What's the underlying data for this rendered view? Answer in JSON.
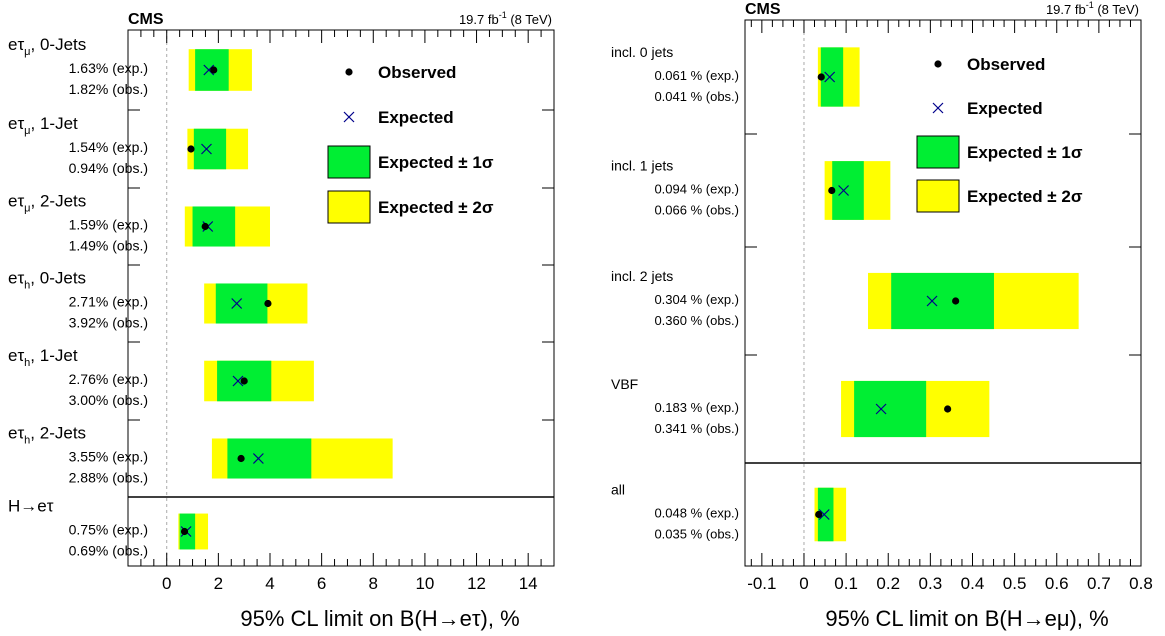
{
  "chart_data": [
    {
      "type": "horizontal-interval",
      "cms_label": "CMS",
      "lumi": "19.7 fb",
      "lumi_sup": "-1",
      "energy": "(8 TeV)",
      "xlabel": "95% CL limit on B(H→eτ), %",
      "xlim": [
        -1.5,
        15.0
      ],
      "xticks": [
        0,
        2,
        4,
        6,
        8,
        10,
        12,
        14
      ],
      "grid": false,
      "legend_position": "top-right",
      "legend": [
        "Observed",
        "Expected",
        "Expected ± 1σ",
        "Expected ± 2σ"
      ],
      "colors": {
        "one_sigma": "#00ee33",
        "two_sigma": "#ffff00",
        "expected_marker": "#00008b",
        "observed_marker": "#000000",
        "zero_line": "#aaaaaa"
      },
      "categories": [
        {
          "name": "eτ",
          "sub": "μ",
          "suffix": ", 0-Jets",
          "exp_text": "1.63% (exp.)",
          "obs_text": "1.82% (obs.)",
          "expected": 1.63,
          "observed": 1.82,
          "band1": [
            1.1,
            2.4
          ],
          "band2": [
            0.85,
            3.3
          ]
        },
        {
          "name": "eτ",
          "sub": "μ",
          "suffix": ", 1-Jet",
          "exp_text": "1.54% (exp.)",
          "obs_text": "0.94% (obs.)",
          "expected": 1.54,
          "observed": 0.94,
          "band1": [
            1.05,
            2.3
          ],
          "band2": [
            0.8,
            3.15
          ]
        },
        {
          "name": "eτ",
          "sub": "μ",
          "suffix": ", 2-Jets",
          "exp_text": "1.59% (exp.)",
          "obs_text": "1.49% (obs.)",
          "expected": 1.59,
          "observed": 1.49,
          "band1": [
            1.0,
            2.65
          ],
          "band2": [
            0.7,
            4.0
          ]
        },
        {
          "name": "eτ",
          "sub": "h",
          "suffix": ", 0-Jets",
          "exp_text": "2.71% (exp.)",
          "obs_text": "3.92% (obs.)",
          "expected": 2.71,
          "observed": 3.92,
          "band1": [
            1.9,
            3.9
          ],
          "band2": [
            1.45,
            5.45
          ]
        },
        {
          "name": "eτ",
          "sub": "h",
          "suffix": ", 1-Jet",
          "exp_text": "2.76% (exp.)",
          "obs_text": "3.00% (obs.)",
          "expected": 2.76,
          "observed": 3.0,
          "band1": [
            1.95,
            4.05
          ],
          "band2": [
            1.45,
            5.7
          ]
        },
        {
          "name": "eτ",
          "sub": "h",
          "suffix": ", 2-Jets",
          "exp_text": "3.55% (exp.)",
          "obs_text": "2.88% (obs.)",
          "expected": 3.55,
          "observed": 2.88,
          "band1": [
            2.35,
            5.6
          ],
          "band2": [
            1.75,
            8.75
          ]
        },
        {
          "name": "H→eτ",
          "sub": "",
          "suffix": "",
          "exp_text": "0.75% (exp.)",
          "obs_text": "0.69% (obs.)",
          "expected": 0.75,
          "observed": 0.69,
          "band1": [
            0.5,
            1.1
          ],
          "band2": [
            0.45,
            1.6
          ]
        }
      ]
    },
    {
      "type": "horizontal-interval",
      "cms_label": "CMS",
      "lumi": "19.7 fb",
      "lumi_sup": "-1",
      "energy": "(8 TeV)",
      "xlabel": "95% CL limit on B(H→eμ), %",
      "xlim": [
        -0.14,
        0.8
      ],
      "xticks": [
        -0.1,
        0,
        0.1,
        0.2,
        0.3,
        0.4,
        0.5,
        0.6,
        0.7,
        0.8
      ],
      "xtick_labels": [
        "-0.1",
        "0",
        "0.1",
        "0.2",
        "0.3",
        "0.4",
        "0.5",
        "0.6",
        "0.7",
        "0.8"
      ],
      "grid": false,
      "legend_position": "top-right",
      "legend": [
        "Observed",
        "Expected",
        "Expected ± 1σ",
        "Expected ± 2σ"
      ],
      "colors": {
        "one_sigma": "#00ee33",
        "two_sigma": "#ffff00",
        "expected_marker": "#00008b",
        "observed_marker": "#000000",
        "zero_line": "#aaaaaa"
      },
      "categories": [
        {
          "name": "incl. 0 jets",
          "exp_text": "0.061 % (exp.)",
          "obs_text": "0.041 % (obs.)",
          "expected": 0.061,
          "observed": 0.041,
          "band1": [
            0.04,
            0.093
          ],
          "band2": [
            0.033,
            0.132
          ]
        },
        {
          "name": "incl. 1 jets",
          "exp_text": "0.094 % (exp.)",
          "obs_text": "0.066 % (obs.)",
          "expected": 0.094,
          "observed": 0.066,
          "band1": [
            0.067,
            0.142
          ],
          "band2": [
            0.049,
            0.205
          ]
        },
        {
          "name": "incl. 2 jets",
          "exp_text": "0.304 % (exp.)",
          "obs_text": "0.360 % (obs.)",
          "expected": 0.304,
          "observed": 0.36,
          "band1": [
            0.207,
            0.451
          ],
          "band2": [
            0.152,
            0.652
          ]
        },
        {
          "name": "VBF",
          "exp_text": "0.183 % (exp.)",
          "obs_text": "0.341 % (obs.)",
          "expected": 0.183,
          "observed": 0.341,
          "band1": [
            0.119,
            0.29
          ],
          "band2": [
            0.088,
            0.44
          ]
        },
        {
          "name": "all",
          "exp_text": "0.048 % (exp.)",
          "obs_text": "0.035 % (obs.)",
          "expected": 0.048,
          "observed": 0.035,
          "band1": [
            0.033,
            0.07
          ],
          "band2": [
            0.025,
            0.1
          ]
        }
      ]
    }
  ]
}
